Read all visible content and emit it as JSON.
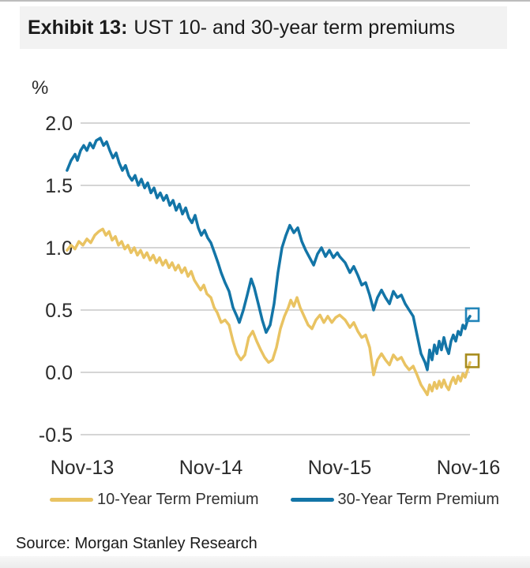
{
  "header": {
    "exhibit_label": "Exhibit 13:",
    "title": "UST 10- and 30-year term premiums"
  },
  "source": "Source: Morgan Stanley Research",
  "colors": {
    "series_10yr": "#e9c362",
    "series_30yr": "#1375a7",
    "marker_10yr": "#a78c1d",
    "marker_30yr": "#2285b9",
    "gridline": "#c7c7c7",
    "header_bg": "#f2f2f2"
  },
  "chart_data": {
    "type": "line",
    "title": "UST 10- and 30-year term premiums",
    "ylabel": "%",
    "xlabel": "",
    "grid": true,
    "legend_position": "bottom",
    "ylim": [
      -0.5,
      2.0
    ],
    "yticks": [
      2.0,
      1.5,
      1.0,
      0.5,
      0.0,
      -0.5
    ],
    "ytick_labels": [
      "2.0",
      "1.5",
      "1.0",
      "0.5",
      "0.0",
      "-0.5"
    ],
    "x_unit": "years since Nov-2013",
    "xticks": [
      0,
      1,
      2,
      3
    ],
    "xtick_labels": [
      "Nov-13",
      "Nov-14",
      "Nov-15",
      "Nov-16"
    ],
    "series": [
      {
        "name": "10-Year Term Premium",
        "color": "#e9c362",
        "end_marker": "open-square",
        "end_marker_color": "#a78c1d",
        "points": [
          [
            -0.117,
            0.98
          ],
          [
            -0.086,
            1.02
          ],
          [
            -0.055,
            0.99
          ],
          [
            -0.025,
            1.05
          ],
          [
            0.006,
            1.02
          ],
          [
            0.037,
            1.07
          ],
          [
            0.067,
            1.04
          ],
          [
            0.098,
            1.1
          ],
          [
            0.129,
            1.13
          ],
          [
            0.16,
            1.15
          ],
          [
            0.184,
            1.1
          ],
          [
            0.209,
            1.13
          ],
          [
            0.233,
            1.06
          ],
          [
            0.258,
            1.09
          ],
          [
            0.282,
            1.02
          ],
          [
            0.307,
            1.05
          ],
          [
            0.331,
            0.99
          ],
          [
            0.356,
            1.02
          ],
          [
            0.38,
            0.96
          ],
          [
            0.405,
            1.0
          ],
          [
            0.429,
            0.94
          ],
          [
            0.454,
            0.98
          ],
          [
            0.479,
            0.92
          ],
          [
            0.503,
            0.96
          ],
          [
            0.528,
            0.9
          ],
          [
            0.552,
            0.94
          ],
          [
            0.577,
            0.88
          ],
          [
            0.601,
            0.92
          ],
          [
            0.626,
            0.86
          ],
          [
            0.65,
            0.9
          ],
          [
            0.675,
            0.84
          ],
          [
            0.699,
            0.88
          ],
          [
            0.724,
            0.82
          ],
          [
            0.748,
            0.86
          ],
          [
            0.773,
            0.8
          ],
          [
            0.798,
            0.84
          ],
          [
            0.822,
            0.77
          ],
          [
            0.847,
            0.81
          ],
          [
            0.871,
            0.74
          ],
          [
            0.896,
            0.7
          ],
          [
            0.92,
            0.66
          ],
          [
            0.945,
            0.7
          ],
          [
            0.969,
            0.63
          ],
          [
            1.0,
            0.6
          ],
          [
            1.025,
            0.52
          ],
          [
            1.049,
            0.48
          ],
          [
            1.08,
            0.4
          ],
          [
            1.11,
            0.42
          ],
          [
            1.141,
            0.38
          ],
          [
            1.172,
            0.25
          ],
          [
            1.202,
            0.15
          ],
          [
            1.233,
            0.1
          ],
          [
            1.264,
            0.14
          ],
          [
            1.294,
            0.28
          ],
          [
            1.325,
            0.33
          ],
          [
            1.356,
            0.25
          ],
          [
            1.387,
            0.18
          ],
          [
            1.417,
            0.12
          ],
          [
            1.448,
            0.08
          ],
          [
            1.479,
            0.1
          ],
          [
            1.509,
            0.2
          ],
          [
            1.54,
            0.35
          ],
          [
            1.571,
            0.45
          ],
          [
            1.601,
            0.52
          ],
          [
            1.62,
            0.58
          ],
          [
            1.644,
            0.53
          ],
          [
            1.669,
            0.6
          ],
          [
            1.693,
            0.52
          ],
          [
            1.724,
            0.45
          ],
          [
            1.755,
            0.38
          ],
          [
            1.785,
            0.35
          ],
          [
            1.816,
            0.42
          ],
          [
            1.847,
            0.46
          ],
          [
            1.877,
            0.4
          ],
          [
            1.908,
            0.45
          ],
          [
            1.939,
            0.4
          ],
          [
            1.969,
            0.44
          ],
          [
            2.0,
            0.46
          ],
          [
            2.043,
            0.42
          ],
          [
            2.08,
            0.36
          ],
          [
            2.11,
            0.4
          ],
          [
            2.141,
            0.33
          ],
          [
            2.172,
            0.28
          ],
          [
            2.202,
            0.3
          ],
          [
            2.233,
            0.2
          ],
          [
            2.264,
            -0.02
          ],
          [
            2.294,
            0.1
          ],
          [
            2.325,
            0.15
          ],
          [
            2.356,
            0.1
          ],
          [
            2.387,
            0.06
          ],
          [
            2.417,
            0.14
          ],
          [
            2.448,
            0.1
          ],
          [
            2.479,
            0.12
          ],
          [
            2.509,
            0.06
          ],
          [
            2.54,
            0.02
          ],
          [
            2.571,
            0.05
          ],
          [
            2.601,
            -0.02
          ],
          [
            2.632,
            -0.1
          ],
          [
            2.663,
            -0.15
          ],
          [
            2.681,
            -0.18
          ],
          [
            2.699,
            -0.1
          ],
          [
            2.718,
            -0.15
          ],
          [
            2.736,
            -0.08
          ],
          [
            2.755,
            -0.13
          ],
          [
            2.773,
            -0.07
          ],
          [
            2.791,
            -0.12
          ],
          [
            2.81,
            -0.06
          ],
          [
            2.828,
            -0.11
          ],
          [
            2.847,
            -0.14
          ],
          [
            2.865,
            -0.08
          ],
          [
            2.883,
            -0.04
          ],
          [
            2.902,
            -0.09
          ],
          [
            2.92,
            -0.03
          ],
          [
            2.939,
            -0.07
          ],
          [
            2.957,
            -0.01
          ],
          [
            2.975,
            -0.04
          ],
          [
            2.994,
            0.02
          ],
          [
            3.012,
            0.08
          ]
        ]
      },
      {
        "name": "30-Year Term Premium",
        "color": "#1375a7",
        "end_marker": "open-square",
        "end_marker_color": "#2285b9",
        "points": [
          [
            -0.117,
            1.62
          ],
          [
            -0.086,
            1.7
          ],
          [
            -0.055,
            1.75
          ],
          [
            -0.037,
            1.7
          ],
          [
            -0.012,
            1.78
          ],
          [
            0.012,
            1.82
          ],
          [
            0.037,
            1.78
          ],
          [
            0.061,
            1.84
          ],
          [
            0.086,
            1.8
          ],
          [
            0.11,
            1.86
          ],
          [
            0.141,
            1.88
          ],
          [
            0.166,
            1.82
          ],
          [
            0.19,
            1.85
          ],
          [
            0.215,
            1.78
          ],
          [
            0.239,
            1.72
          ],
          [
            0.264,
            1.76
          ],
          [
            0.288,
            1.68
          ],
          [
            0.313,
            1.62
          ],
          [
            0.337,
            1.66
          ],
          [
            0.362,
            1.58
          ],
          [
            0.387,
            1.54
          ],
          [
            0.411,
            1.58
          ],
          [
            0.436,
            1.5
          ],
          [
            0.46,
            1.55
          ],
          [
            0.485,
            1.48
          ],
          [
            0.509,
            1.52
          ],
          [
            0.534,
            1.44
          ],
          [
            0.558,
            1.48
          ],
          [
            0.583,
            1.4
          ],
          [
            0.607,
            1.44
          ],
          [
            0.632,
            1.38
          ],
          [
            0.656,
            1.42
          ],
          [
            0.681,
            1.34
          ],
          [
            0.706,
            1.38
          ],
          [
            0.73,
            1.3
          ],
          [
            0.755,
            1.35
          ],
          [
            0.779,
            1.27
          ],
          [
            0.804,
            1.32
          ],
          [
            0.828,
            1.24
          ],
          [
            0.853,
            1.2
          ],
          [
            0.877,
            1.26
          ],
          [
            0.902,
            1.16
          ],
          [
            0.926,
            1.1
          ],
          [
            0.951,
            1.14
          ],
          [
            0.975,
            1.08
          ],
          [
            1.0,
            1.04
          ],
          [
            1.031,
            0.95
          ],
          [
            1.055,
            0.88
          ],
          [
            1.08,
            0.8
          ],
          [
            1.11,
            0.72
          ],
          [
            1.141,
            0.65
          ],
          [
            1.172,
            0.52
          ],
          [
            1.202,
            0.45
          ],
          [
            1.221,
            0.4
          ],
          [
            1.252,
            0.5
          ],
          [
            1.282,
            0.62
          ],
          [
            1.313,
            0.75
          ],
          [
            1.337,
            0.68
          ],
          [
            1.368,
            0.55
          ],
          [
            1.399,
            0.42
          ],
          [
            1.429,
            0.32
          ],
          [
            1.46,
            0.38
          ],
          [
            1.491,
            0.55
          ],
          [
            1.521,
            0.8
          ],
          [
            1.552,
            1.0
          ],
          [
            1.583,
            1.1
          ],
          [
            1.613,
            1.18
          ],
          [
            1.644,
            1.12
          ],
          [
            1.675,
            1.16
          ],
          [
            1.706,
            1.05
          ],
          [
            1.736,
            0.98
          ],
          [
            1.767,
            0.92
          ],
          [
            1.798,
            0.86
          ],
          [
            1.828,
            0.95
          ],
          [
            1.859,
            1.0
          ],
          [
            1.89,
            0.93
          ],
          [
            1.92,
            0.98
          ],
          [
            1.951,
            0.92
          ],
          [
            1.982,
            0.96
          ],
          [
            2.0,
            0.93
          ],
          [
            2.043,
            0.88
          ],
          [
            2.08,
            0.8
          ],
          [
            2.11,
            0.85
          ],
          [
            2.141,
            0.78
          ],
          [
            2.172,
            0.7
          ],
          [
            2.202,
            0.72
          ],
          [
            2.233,
            0.62
          ],
          [
            2.264,
            0.5
          ],
          [
            2.294,
            0.6
          ],
          [
            2.325,
            0.66
          ],
          [
            2.356,
            0.6
          ],
          [
            2.387,
            0.55
          ],
          [
            2.417,
            0.65
          ],
          [
            2.448,
            0.6
          ],
          [
            2.479,
            0.62
          ],
          [
            2.509,
            0.55
          ],
          [
            2.54,
            0.5
          ],
          [
            2.571,
            0.45
          ],
          [
            2.601,
            0.3
          ],
          [
            2.632,
            0.15
          ],
          [
            2.663,
            0.08
          ],
          [
            2.681,
            0.02
          ],
          [
            2.699,
            0.18
          ],
          [
            2.718,
            0.1
          ],
          [
            2.736,
            0.22
          ],
          [
            2.755,
            0.15
          ],
          [
            2.773,
            0.25
          ],
          [
            2.791,
            0.18
          ],
          [
            2.81,
            0.28
          ],
          [
            2.828,
            0.2
          ],
          [
            2.847,
            0.15
          ],
          [
            2.865,
            0.25
          ],
          [
            2.883,
            0.3
          ],
          [
            2.902,
            0.25
          ],
          [
            2.92,
            0.33
          ],
          [
            2.939,
            0.3
          ],
          [
            2.957,
            0.38
          ],
          [
            2.975,
            0.35
          ],
          [
            2.994,
            0.42
          ],
          [
            3.012,
            0.45
          ]
        ]
      }
    ]
  },
  "legend": {
    "items": [
      "10-Year Term Premium",
      "30-Year Term Premium"
    ]
  }
}
